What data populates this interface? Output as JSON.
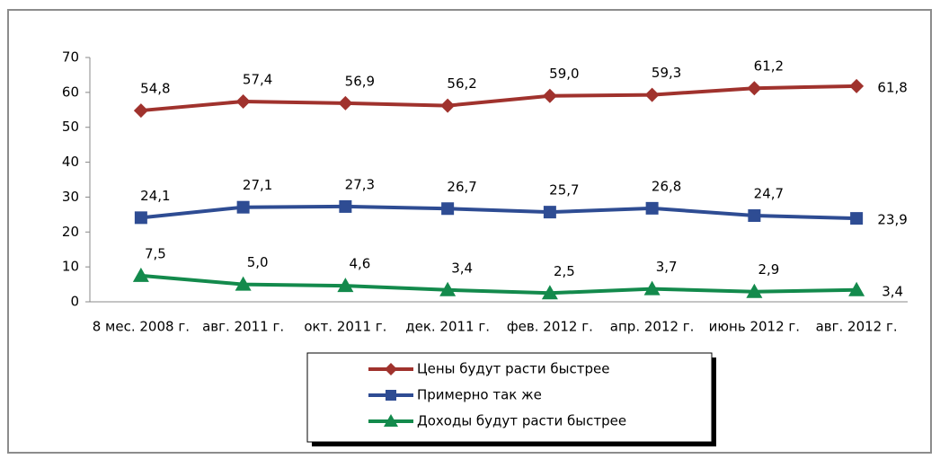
{
  "chart_data": {
    "type": "line",
    "categories": [
      "8 мес. 2008 г.",
      "авг. 2011 г.",
      "окт. 2011 г.",
      "дек. 2011 г.",
      "фев. 2012 г.",
      "апр. 2012 г.",
      "июнь 2012 г.",
      "авг. 2012 г."
    ],
    "series": [
      {
        "name": "Цены будут расти быстрее",
        "color": "#a0322d",
        "marker": "diamond",
        "values": [
          54.8,
          57.4,
          56.9,
          56.2,
          59.0,
          59.3,
          61.2,
          61.8
        ],
        "value_labels": [
          "54,8",
          "57,4",
          "56,9",
          "56,2",
          "59,0",
          "59,3",
          "61,2",
          "61,8"
        ]
      },
      {
        "name": "Примерно так же",
        "color": "#2e4c93",
        "marker": "square",
        "values": [
          24.1,
          27.1,
          27.3,
          26.7,
          25.7,
          26.8,
          24.7,
          23.9
        ],
        "value_labels": [
          "24,1",
          "27,1",
          "27,3",
          "26,7",
          "25,7",
          "26,8",
          "24,7",
          "23,9"
        ]
      },
      {
        "name": "Доходы будут расти быстрее",
        "color": "#138a4c",
        "marker": "triangle",
        "values": [
          7.5,
          5.0,
          4.6,
          3.4,
          2.5,
          3.7,
          2.9,
          3.4
        ],
        "value_labels": [
          "7,5",
          "5,0",
          "4,6",
          "3,4",
          "2,5",
          "3,7",
          "2,9",
          "3,4"
        ]
      }
    ],
    "ylim": [
      0,
      70
    ],
    "yticks": [
      0,
      10,
      20,
      30,
      40,
      50,
      60,
      70
    ],
    "grid": false,
    "legend": "bottom"
  }
}
